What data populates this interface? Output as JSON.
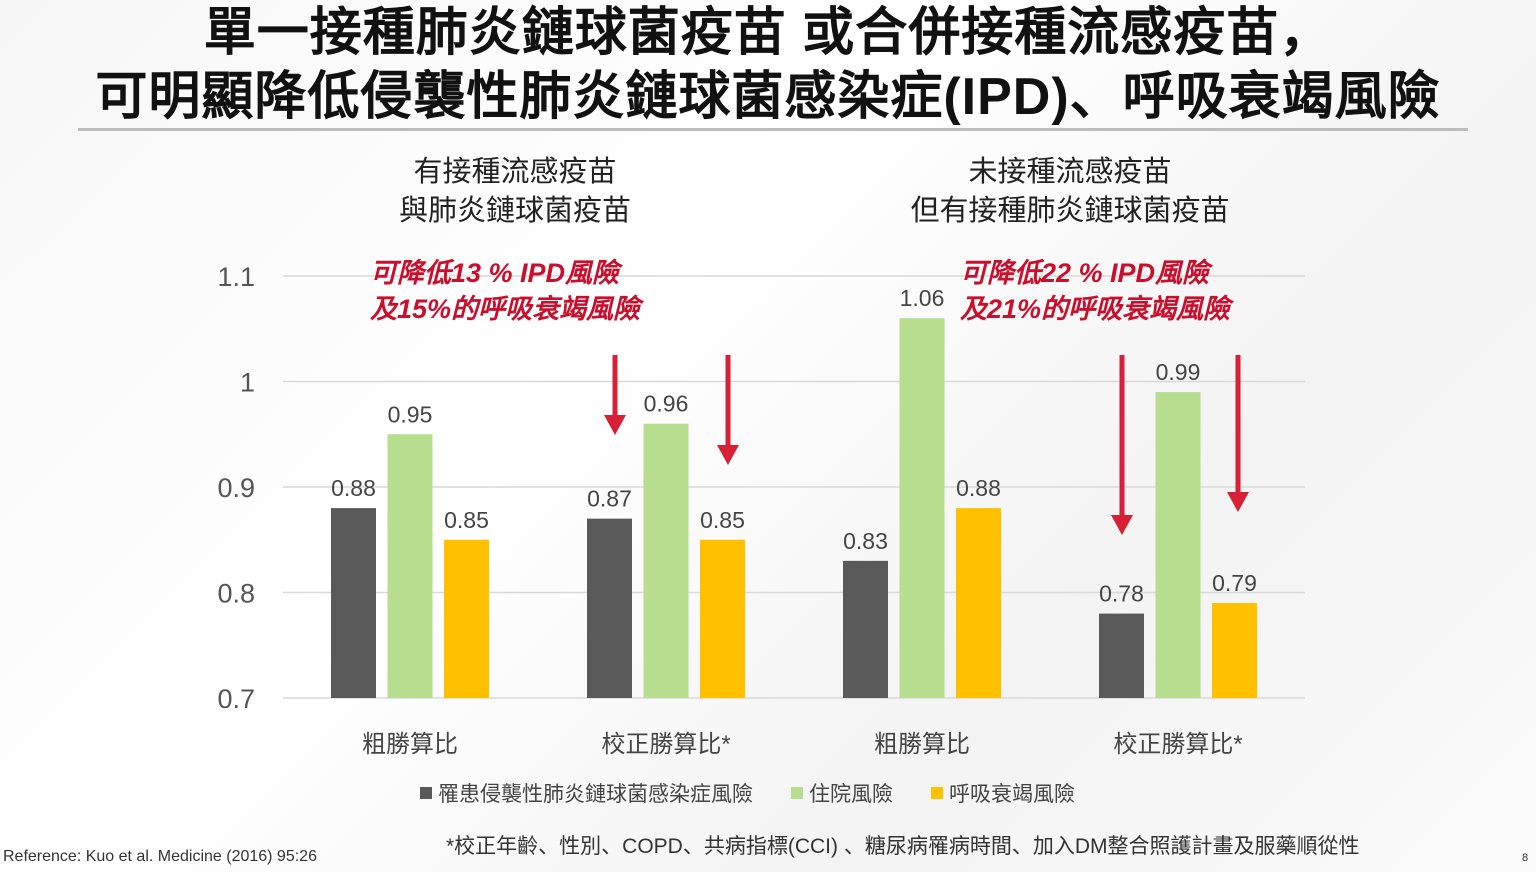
{
  "title_line1": "單一接種肺炎鏈球菌疫苗 或合併接種流感疫苗，",
  "title_line2": "可明顯降低侵襲性肺炎鏈球菌感染症(IPD)、呼吸衰竭風險",
  "panels": [
    {
      "heading_line1": "有接種流感疫苗",
      "heading_line2": "與肺炎鏈球菌疫苗",
      "note_line1": "可降低13 % IPD風險",
      "note_line2": "及15%的呼吸衰竭風險"
    },
    {
      "heading_line1": "未接種流感疫苗",
      "heading_line2": "但有接種肺炎鏈球菌疫苗",
      "note_line1": "可降低22 % IPD風險",
      "note_line2": "及21%的呼吸衰竭風險"
    }
  ],
  "chart_data": {
    "type": "bar",
    "categories": [
      "粗勝算比",
      "校正勝算比*",
      "粗勝算比",
      "校正勝算比*"
    ],
    "series": [
      {
        "name": "罹患侵襲性肺炎鏈球菌感染症風險",
        "color": "#595959",
        "values": [
          0.88,
          0.87,
          0.83,
          0.78
        ]
      },
      {
        "name": "住院風險",
        "color": "#b7dd8e",
        "values": [
          0.95,
          0.96,
          1.06,
          0.99
        ]
      },
      {
        "name": "呼吸衰竭風險",
        "color": "#ffc000",
        "values": [
          0.85,
          0.85,
          0.88,
          0.79
        ]
      }
    ],
    "yticks": [
      "0.7",
      "0.8",
      "0.9",
      "1",
      "1.1"
    ],
    "ylim": [
      0.7,
      1.1
    ],
    "grid": true,
    "legend": "bottom",
    "annotations": "red down arrows beside adjusted odds ratio groups"
  },
  "footnote": "*校正年齡、性別、COPD、共病指標(CCI) 、糖尿病罹病時間、加入DM整合照護計畫及服藥順從性",
  "reference": "Reference: Kuo et al. Medicine (2016) 95:26",
  "page_number": "8"
}
